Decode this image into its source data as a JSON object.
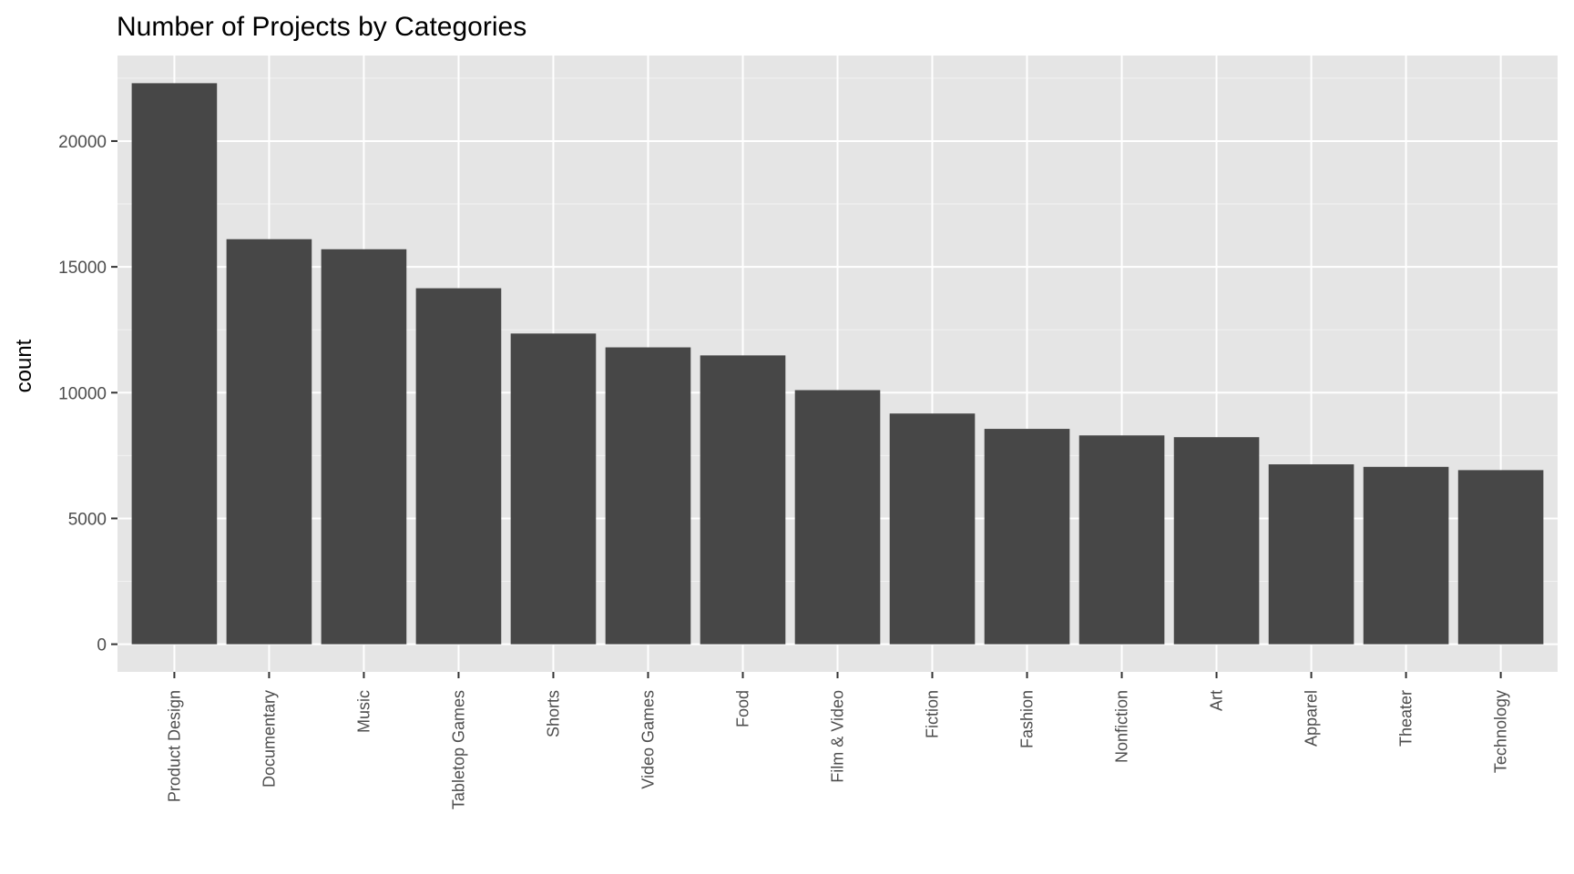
{
  "chart_data": {
    "type": "bar",
    "title": "Number of Projects by Categories",
    "xlabel": "",
    "ylabel": "count",
    "categories": [
      "Product Design",
      "Documentary",
      "Music",
      "Tabletop Games",
      "Shorts",
      "Video Games",
      "Food",
      "Film & Video",
      "Fiction",
      "Fashion",
      "Nonfiction",
      "Art",
      "Apparel",
      "Theater",
      "Technology"
    ],
    "values": [
      22300,
      16100,
      15700,
      14150,
      12350,
      11800,
      11480,
      10100,
      9170,
      8560,
      8300,
      8230,
      7150,
      7050,
      6920
    ],
    "ylim": [
      -1100,
      23400
    ],
    "yticks": [
      0,
      5000,
      10000,
      15000,
      20000
    ],
    "grid": true,
    "legend": "none",
    "colors": {
      "bar": "#474747",
      "panel": "#e5e5e5",
      "grid_major": "#ffffff",
      "grid_minor": "#f2f2f2"
    }
  }
}
